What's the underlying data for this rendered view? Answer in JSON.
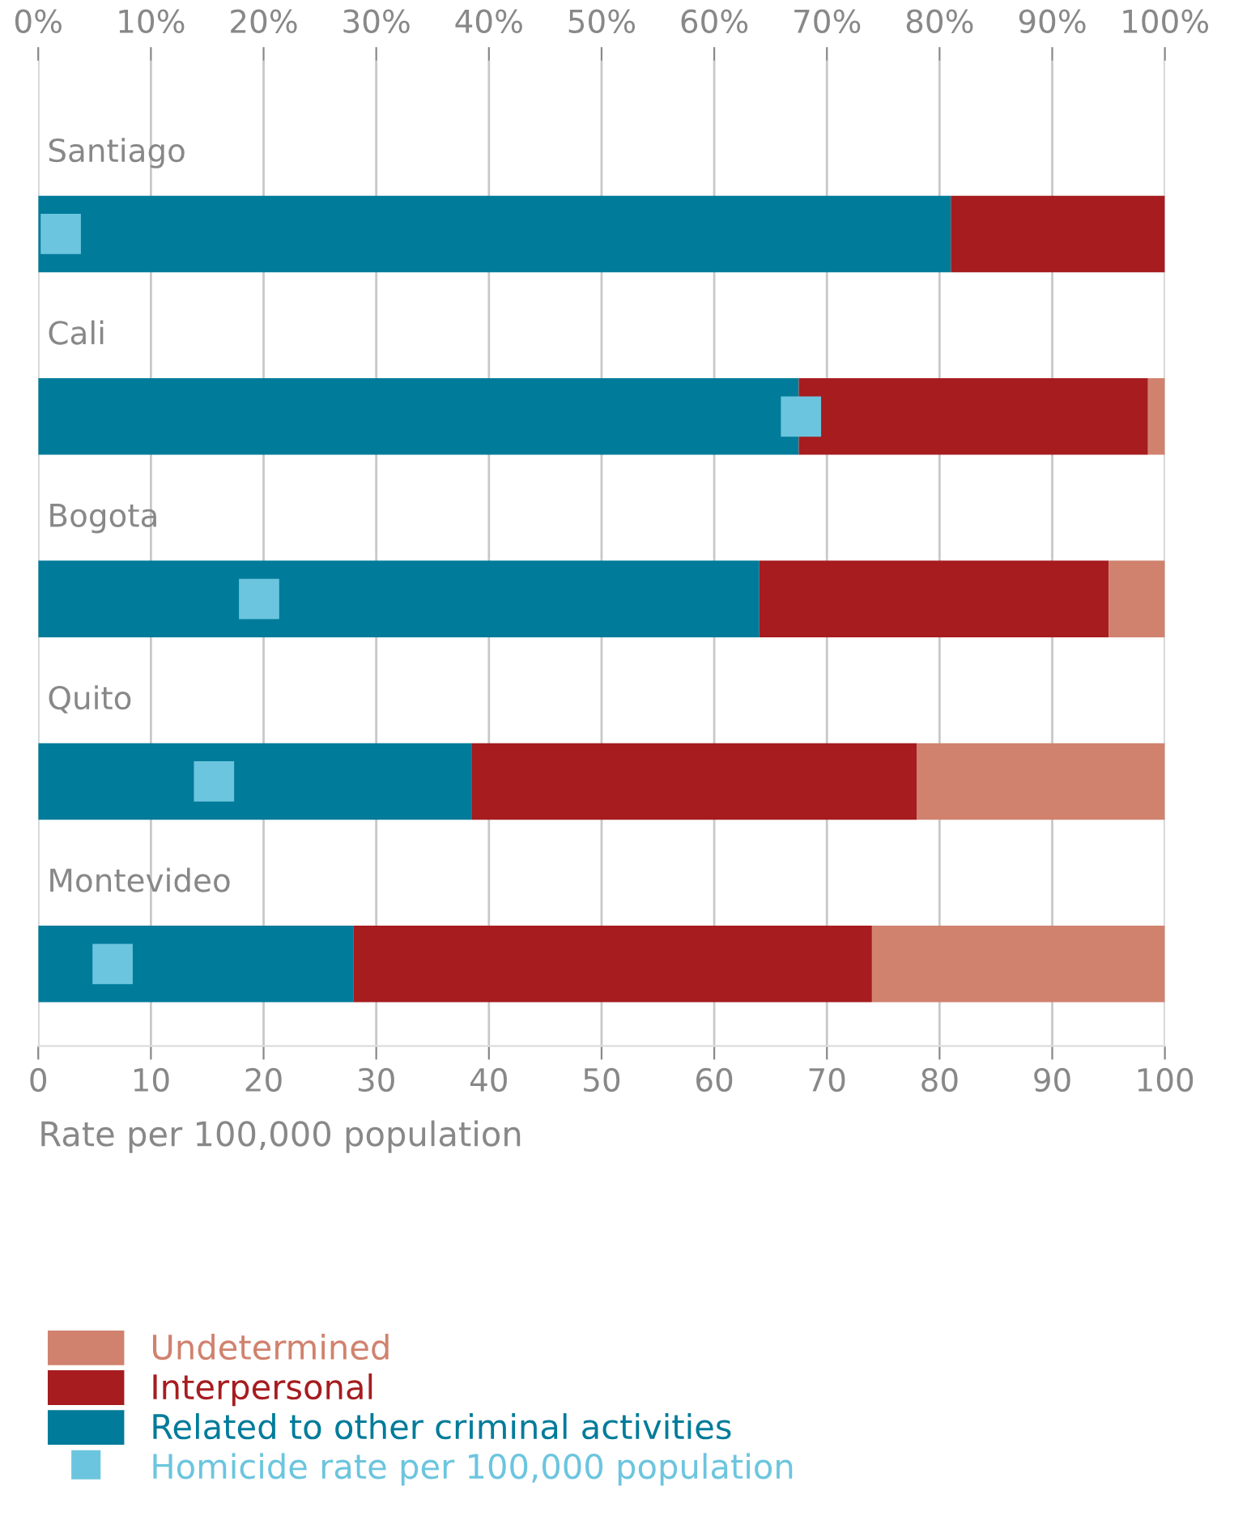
{
  "chart_data": {
    "type": "bar",
    "orientation": "horizontal",
    "stacked": true,
    "categories": [
      "Santiago",
      "Cali",
      "Bogota",
      "Quito",
      "Montevideo"
    ],
    "series": [
      {
        "name": "Related to other criminal activities",
        "color": "#007b9a",
        "values": [
          81,
          67.5,
          64,
          38.5,
          28
        ]
      },
      {
        "name": "Interpersonal",
        "color": "#a61c1f",
        "values": [
          19,
          31,
          31,
          39.5,
          46
        ]
      },
      {
        "name": "Undetermined",
        "color": "#d0826e",
        "values": [
          0,
          1.5,
          5,
          22,
          26
        ]
      },
      {
        "name": "Homicide rate per 100,000 population",
        "type": "scatter",
        "marker": "square",
        "color": "#6cc5de",
        "values": [
          2,
          67.7,
          19.6,
          15.6,
          6.6
        ]
      }
    ],
    "xlabel": "Rate per 100,000 population",
    "xlim": [
      0,
      100
    ],
    "xticks": [
      0,
      10,
      20,
      30,
      40,
      50,
      60,
      70,
      80,
      90,
      100
    ],
    "x2lim": [
      0,
      100
    ],
    "x2ticks": [
      {
        "value": 0,
        "label": "0%"
      },
      {
        "value": 10,
        "label": "10%"
      },
      {
        "value": 20,
        "label": "20%"
      },
      {
        "value": 30,
        "label": "30%"
      },
      {
        "value": 40,
        "label": "40%"
      },
      {
        "value": 50,
        "label": "50%"
      },
      {
        "value": 60,
        "label": "60%"
      },
      {
        "value": 70,
        "label": "70%"
      },
      {
        "value": 80,
        "label": "80%"
      },
      {
        "value": 90,
        "label": "90%"
      },
      {
        "value": 100,
        "label": "100%"
      }
    ],
    "grid": "x",
    "legend": "bottom"
  }
}
